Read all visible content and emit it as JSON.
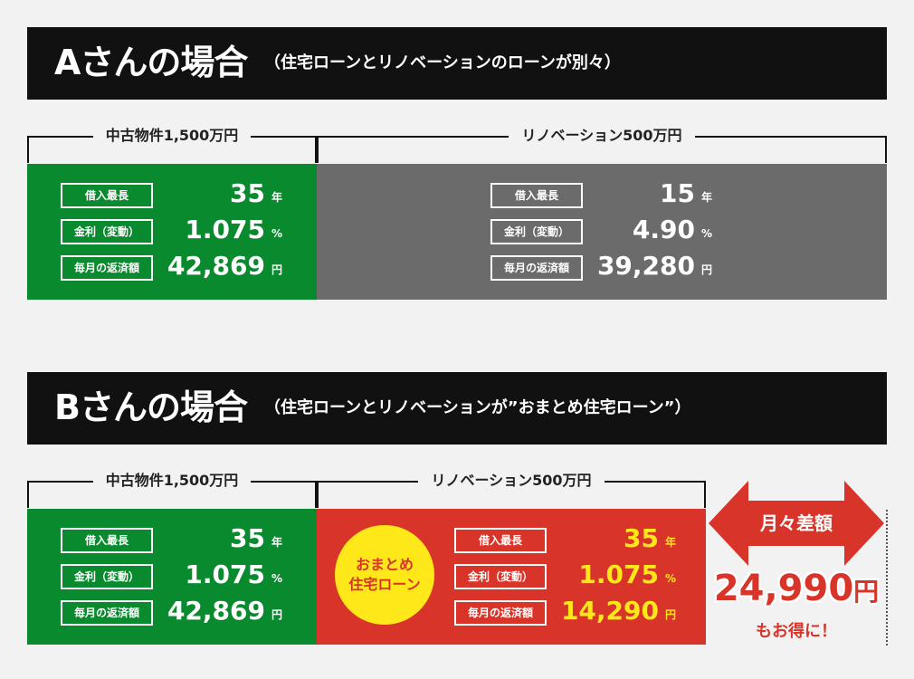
{
  "case_a": {
    "title": "Aさんの場合",
    "subtitle": "（住宅ローンとリノベーションのローンが別々）",
    "used_property_label": "中古物件1,500万円",
    "renovation_label": "リノベーション500万円",
    "left": {
      "term_label": "借入最長",
      "term_value": "35",
      "term_unit": "年",
      "rate_label": "金利（変動）",
      "rate_value": "1.075",
      "rate_unit": "%",
      "payment_label": "毎月の返済額",
      "payment_value": "42,869",
      "payment_unit": "円"
    },
    "right": {
      "term_label": "借入最長",
      "term_value": "15",
      "term_unit": "年",
      "rate_label": "金利（変動）",
      "rate_value": "4.90",
      "rate_unit": "%",
      "payment_label": "毎月の返済額",
      "payment_value": "39,280",
      "payment_unit": "円"
    }
  },
  "case_b": {
    "title": "Bさんの場合",
    "subtitle": "（住宅ローンとリノベーションが”おまとめ住宅ローン”）",
    "used_property_label": "中古物件1,500万円",
    "renovation_label": "リノベーション500万円",
    "badge_line1": "おまとめ",
    "badge_line2": "住宅ローン",
    "left": {
      "term_label": "借入最長",
      "term_value": "35",
      "term_unit": "年",
      "rate_label": "金利（変動）",
      "rate_value": "1.075",
      "rate_unit": "%",
      "payment_label": "毎月の返済額",
      "payment_value": "42,869",
      "payment_unit": "円"
    },
    "right": {
      "term_label": "借入最長",
      "term_value": "35",
      "term_unit": "年",
      "rate_label": "金利（変動）",
      "rate_value": "1.075",
      "rate_unit": "%",
      "payment_label": "毎月の返済額",
      "payment_value": "14,290",
      "payment_unit": "円"
    },
    "difference": {
      "label": "月々差額",
      "amount": "24,990",
      "amount_unit": "円",
      "note": "もお得に！"
    }
  },
  "colors": {
    "header_bg": "#111111",
    "green": "#0a8a2e",
    "gray": "#6b6b6b",
    "red": "#d9342a",
    "yellow": "#ffe81a"
  }
}
